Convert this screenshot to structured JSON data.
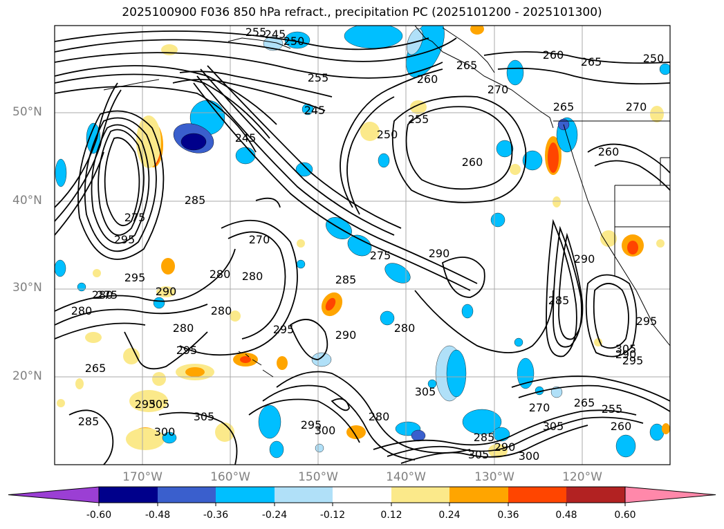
{
  "title": "2025100900 F036 850 hPa refract., precipitation PC (2025101200 - 2025101300)",
  "map": {
    "lat_labels": [
      "50°N",
      "40°N",
      "30°N",
      "20°N"
    ],
    "lon_labels": [
      "170°W",
      "160°W",
      "150°W",
      "140°W",
      "130°W",
      "120°W"
    ],
    "contour_labels": [
      "245",
      "250",
      "255",
      "260",
      "265",
      "250",
      "255",
      "245",
      "245",
      "250",
      "255",
      "260",
      "265",
      "270",
      "260",
      "260",
      "265",
      "270",
      "285",
      "275",
      "270",
      "280",
      "280",
      "275",
      "290",
      "285",
      "280",
      "290",
      "295",
      "295",
      "290",
      "280",
      "280",
      "295",
      "275",
      "280",
      "265",
      "285",
      "295",
      "300",
      "305",
      "300",
      "305",
      "280",
      "305",
      "285",
      "290",
      "300",
      "305",
      "270",
      "265",
      "255",
      "260",
      "305",
      "295",
      "290",
      "290",
      "285",
      "295",
      "305",
      "295",
      "280",
      "295"
    ],
    "contour_color": "#000000",
    "frame_color": "#000000"
  },
  "colorbar": {
    "ticks": [
      "-0.60",
      "-0.48",
      "-0.36",
      "-0.24",
      "-0.12",
      "0.12",
      "0.24",
      "0.36",
      "0.48",
      "0.60"
    ],
    "colors": [
      "#9b3fd4",
      "#00008b",
      "#3a5fcd",
      "#00bfff",
      "#b0e0f8",
      "#ffffff",
      "#fbe98a",
      "#ffa500",
      "#ff4500",
      "#b22222",
      "#ff88aa"
    ]
  }
}
